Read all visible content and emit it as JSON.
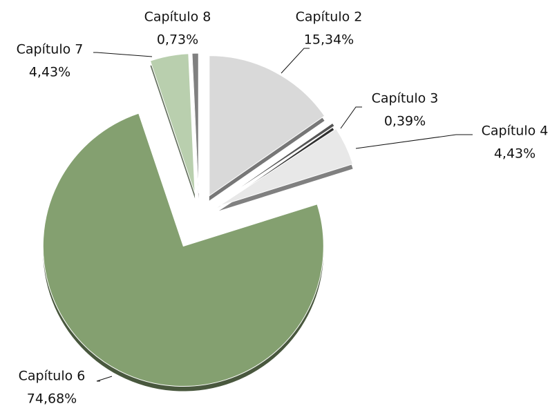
{
  "chart_data": {
    "type": "pie",
    "categories": [
      "Capítulo 2",
      "Capítulo 3",
      "Capítulo 4",
      "Capítulo 6",
      "Capítulo 7",
      "Capítulo 8"
    ],
    "values": [
      15.34,
      0.39,
      4.43,
      74.68,
      4.43,
      0.73
    ],
    "value_labels": [
      "15,34%",
      "0,39%",
      "4,43%",
      "74,68%",
      "4,43%",
      "0,73%"
    ],
    "colors": [
      "#d9d9d9",
      "#555555",
      "#e8e8e8",
      "#84a070",
      "#b9cfae",
      "#808080"
    ]
  }
}
